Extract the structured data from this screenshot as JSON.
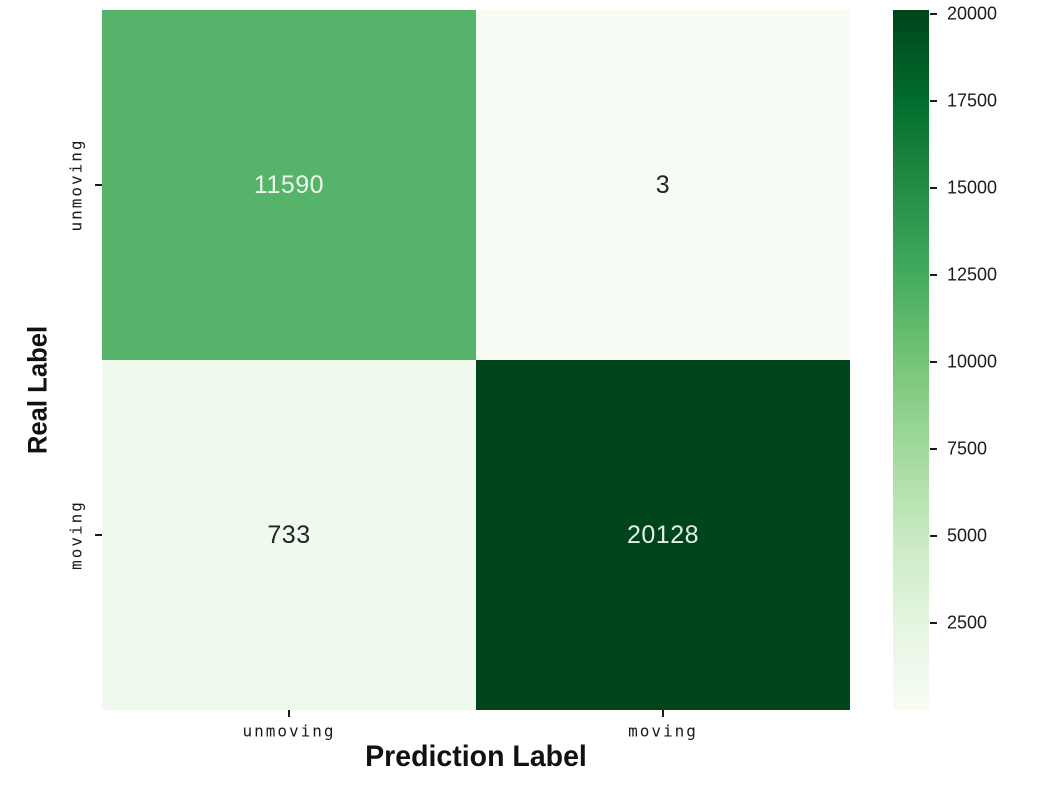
{
  "chart_data": {
    "type": "heatmap",
    "subtype": "confusion-matrix",
    "xlabel": "Prediction Label",
    "ylabel": "Real Label",
    "x_ticklabels": [
      "unmoving",
      "moving"
    ],
    "y_ticklabels": [
      "unmoving",
      "moving"
    ],
    "matrix": [
      [
        11590,
        3
      ],
      [
        733,
        20128
      ]
    ],
    "cell_colors": [
      [
        "#55b36a",
        "#f6fbf4"
      ],
      [
        "#f0f9ee",
        "#00441b"
      ]
    ],
    "cell_text_colors": [
      [
        "#eef8ef",
        "#1e2621"
      ],
      [
        "#1e2621",
        "#e2f1e5"
      ]
    ],
    "colormap": "Greens",
    "vmin": 3,
    "vmax": 20128,
    "colorbar": {
      "position": "right",
      "ticks": [
        2500,
        5000,
        7500,
        10000,
        12500,
        15000,
        17500,
        20000
      ]
    },
    "grid": false,
    "legend": false
  }
}
